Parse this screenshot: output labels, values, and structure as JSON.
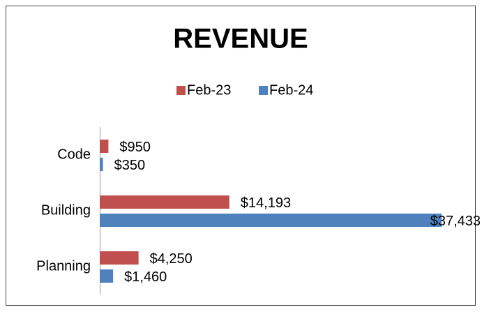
{
  "chart_data": {
    "type": "hbar",
    "title": "REVENUE",
    "categories": [
      "Code",
      "Building",
      "Planning"
    ],
    "series": [
      {
        "name": "Feb-23",
        "color": "#c0504d",
        "values": [
          950,
          14193,
          4250
        ],
        "value_labels": [
          "$950",
          "$14,193",
          "$4,250"
        ]
      },
      {
        "name": "Feb-24",
        "color": "#4f81bd",
        "values": [
          350,
          37433,
          1460
        ],
        "value_labels": [
          "$350",
          "$37,433",
          "$1,460"
        ]
      }
    ]
  }
}
